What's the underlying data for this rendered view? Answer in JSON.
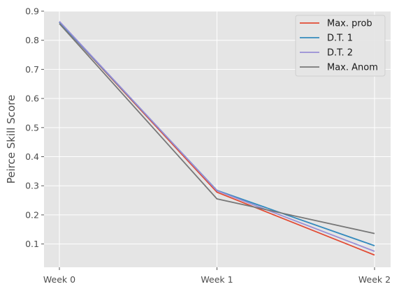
{
  "chart_data": {
    "type": "line",
    "title": "",
    "xlabel": "",
    "ylabel": "Peirce Skill Score",
    "categories": [
      "Week 0",
      "Week 1",
      "Week 2"
    ],
    "ylim": [
      0.02,
      0.9
    ],
    "yticks": [
      0.1,
      0.2,
      0.3,
      0.4,
      0.5,
      0.6,
      0.7,
      0.8,
      0.9
    ],
    "ytick_labels": [
      "0.1",
      "0.2",
      "0.3",
      "0.4",
      "0.5",
      "0.6",
      "0.7",
      "0.8",
      "0.9"
    ],
    "grid": true,
    "legend_position": "top-right",
    "style": "ggplot",
    "series": [
      {
        "name": "Max. prob",
        "color": "#E24A33",
        "values": [
          0.862,
          0.278,
          0.062
        ]
      },
      {
        "name": "D.T. 1",
        "color": "#348ABD",
        "values": [
          0.862,
          0.284,
          0.094
        ]
      },
      {
        "name": "D.T. 2",
        "color": "#988ED5",
        "values": [
          0.865,
          0.283,
          0.075
        ]
      },
      {
        "name": "Max. Anom",
        "color": "#777777",
        "values": [
          0.857,
          0.255,
          0.136
        ]
      }
    ]
  }
}
